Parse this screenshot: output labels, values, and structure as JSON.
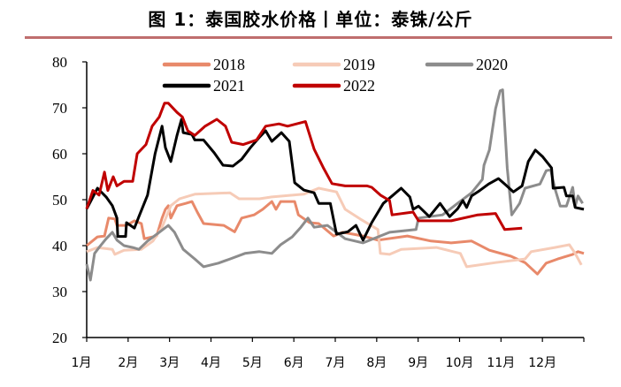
{
  "title": "图 1：泰国胶水价格丨单位：泰铢/公斤",
  "chart_data": {
    "type": "line",
    "title": "图 1：泰国胶水价格丨单位：泰铢/公斤",
    "xlabel": "",
    "ylabel": "",
    "xlim": [
      1,
      13
    ],
    "ylim": [
      20,
      80
    ],
    "yticks": [
      20,
      30,
      40,
      50,
      60,
      70,
      80
    ],
    "x_tick_labels": [
      "1月",
      "2月",
      "3月",
      "4月",
      "5月",
      "6月",
      "7月",
      "8月",
      "9月",
      "10月",
      "11月",
      "12月"
    ],
    "grid": false,
    "legend_placement": "top",
    "series": [
      {
        "name": "2018",
        "color": "#e8896a",
        "points": [
          [
            1,
            40
          ],
          [
            1.26,
            41.9
          ],
          [
            1.43,
            42.1
          ],
          [
            1.53,
            46
          ],
          [
            1.68,
            45.8
          ],
          [
            1.73,
            44.4
          ],
          [
            1.96,
            44.4
          ],
          [
            2.15,
            45.4
          ],
          [
            2.32,
            44.8
          ],
          [
            2.39,
            41.5
          ],
          [
            2.69,
            42.1
          ],
          [
            2.82,
            46
          ],
          [
            2.9,
            47.9
          ],
          [
            2.97,
            48.7
          ],
          [
            3.03,
            46
          ],
          [
            3.18,
            48.7
          ],
          [
            3.39,
            49.2
          ],
          [
            3.54,
            49.6
          ],
          [
            3.67,
            47.3
          ],
          [
            3.82,
            44.8
          ],
          [
            4.31,
            44.4
          ],
          [
            4.57,
            43
          ],
          [
            4.74,
            46
          ],
          [
            5.04,
            46.7
          ],
          [
            5.25,
            47.9
          ],
          [
            5.47,
            49.6
          ],
          [
            5.57,
            47.9
          ],
          [
            5.68,
            49.6
          ],
          [
            6.02,
            49.6
          ],
          [
            6.11,
            46.7
          ],
          [
            6.38,
            45
          ],
          [
            6.6,
            44.8
          ],
          [
            6.96,
            42.1
          ],
          [
            7.18,
            42.9
          ],
          [
            7.67,
            42.1
          ],
          [
            8.03,
            41.2
          ],
          [
            8.74,
            42.1
          ],
          [
            9.31,
            41
          ],
          [
            9.8,
            40.6
          ],
          [
            10.29,
            41
          ],
          [
            10.72,
            39
          ],
          [
            11.24,
            37.7
          ],
          [
            11.58,
            36.3
          ],
          [
            11.88,
            33.8
          ],
          [
            12.09,
            36.2
          ],
          [
            12.37,
            37.1
          ],
          [
            12.73,
            38.1
          ],
          [
            12.86,
            38.7
          ],
          [
            13,
            38.3
          ]
        ]
      },
      {
        "name": "2019",
        "color": "#f6cbb7",
        "points": [
          [
            1,
            38.7
          ],
          [
            1.26,
            39.6
          ],
          [
            1.62,
            39.2
          ],
          [
            1.68,
            38.1
          ],
          [
            1.9,
            39
          ],
          [
            2.32,
            39.2
          ],
          [
            2.6,
            41
          ],
          [
            2.82,
            44
          ],
          [
            3.03,
            48.7
          ],
          [
            3.24,
            50.2
          ],
          [
            3.61,
            51.2
          ],
          [
            4.46,
            51.5
          ],
          [
            4.68,
            50.2
          ],
          [
            5.17,
            50.2
          ],
          [
            5.47,
            50.6
          ],
          [
            6.24,
            51.2
          ],
          [
            6.6,
            52.5
          ],
          [
            7.03,
            51.7
          ],
          [
            7.24,
            47.9
          ],
          [
            7.6,
            45.8
          ],
          [
            8.03,
            43.5
          ],
          [
            8.09,
            38.3
          ],
          [
            8.31,
            38.1
          ],
          [
            8.59,
            39.2
          ],
          [
            9.44,
            39.6
          ],
          [
            10.02,
            38.3
          ],
          [
            10.17,
            35.4
          ],
          [
            10.87,
            36.3
          ],
          [
            11.58,
            37.1
          ],
          [
            11.73,
            38.7
          ],
          [
            12.3,
            39.6
          ],
          [
            12.65,
            40.2
          ],
          [
            12.79,
            38.3
          ],
          [
            12.94,
            35.8
          ]
        ]
      },
      {
        "name": "2020",
        "color": "#8c8c8c",
        "points": [
          [
            1,
            36
          ],
          [
            1.09,
            32.5
          ],
          [
            1.19,
            38.3
          ],
          [
            1.3,
            39.6
          ],
          [
            1.47,
            41.5
          ],
          [
            1.62,
            42.9
          ],
          [
            1.73,
            41.2
          ],
          [
            1.9,
            40
          ],
          [
            2.11,
            39.6
          ],
          [
            2.26,
            39.2
          ],
          [
            2.47,
            41
          ],
          [
            2.75,
            42.9
          ],
          [
            2.97,
            44.4
          ],
          [
            3.12,
            42.9
          ],
          [
            3.33,
            39.2
          ],
          [
            3.61,
            37.1
          ],
          [
            3.82,
            35.4
          ],
          [
            4.18,
            36.2
          ],
          [
            4.46,
            37.1
          ],
          [
            4.82,
            38.3
          ],
          [
            5.17,
            38.7
          ],
          [
            5.47,
            38.3
          ],
          [
            5.68,
            40.2
          ],
          [
            5.96,
            41.9
          ],
          [
            6.17,
            44
          ],
          [
            6.34,
            46
          ],
          [
            6.49,
            44
          ],
          [
            6.81,
            44.4
          ],
          [
            7.24,
            41.5
          ],
          [
            7.67,
            40.6
          ],
          [
            8.31,
            42.9
          ],
          [
            8.95,
            43.5
          ],
          [
            9.01,
            46
          ],
          [
            9.59,
            46.7
          ],
          [
            9.95,
            49.2
          ],
          [
            10.29,
            51.5
          ],
          [
            10.55,
            54.4
          ],
          [
            10.59,
            57.5
          ],
          [
            10.72,
            60.8
          ],
          [
            10.87,
            69.8
          ],
          [
            10.98,
            73.7
          ],
          [
            11.04,
            73.9
          ],
          [
            11.15,
            56.9
          ],
          [
            11.26,
            46.7
          ],
          [
            11.45,
            49.2
          ],
          [
            11.58,
            52.5
          ],
          [
            11.94,
            53.4
          ],
          [
            12.09,
            56.3
          ],
          [
            12.2,
            56.5
          ],
          [
            12.3,
            52.5
          ],
          [
            12.43,
            48.6
          ],
          [
            12.58,
            48.6
          ],
          [
            12.73,
            52.7
          ],
          [
            12.79,
            48.6
          ],
          [
            12.86,
            50.8
          ],
          [
            12.97,
            49.2
          ]
        ]
      },
      {
        "name": "2021",
        "color": "#000000",
        "points": [
          [
            1,
            48
          ],
          [
            1.26,
            52.5
          ],
          [
            1.47,
            50.6
          ],
          [
            1.62,
            48.7
          ],
          [
            1.73,
            46
          ],
          [
            1.75,
            42
          ],
          [
            1.94,
            42
          ],
          [
            1.96,
            45
          ],
          [
            2.15,
            43.8
          ],
          [
            2.26,
            46.3
          ],
          [
            2.47,
            51
          ],
          [
            2.65,
            60
          ],
          [
            2.82,
            66
          ],
          [
            2.9,
            61.3
          ],
          [
            3.03,
            58.3
          ],
          [
            3.18,
            64
          ],
          [
            3.29,
            67.5
          ],
          [
            3.33,
            64.6
          ],
          [
            3.54,
            64.2
          ],
          [
            3.61,
            63
          ],
          [
            3.82,
            63
          ],
          [
            4.08,
            60.2
          ],
          [
            4.29,
            57.5
          ],
          [
            4.53,
            57.3
          ],
          [
            4.74,
            58.8
          ],
          [
            4.95,
            61.3
          ],
          [
            5.17,
            63.6
          ],
          [
            5.32,
            65
          ],
          [
            5.47,
            62.7
          ],
          [
            5.7,
            64.6
          ],
          [
            5.89,
            62.7
          ],
          [
            6.02,
            53.7
          ],
          [
            6.24,
            52.1
          ],
          [
            6.49,
            51.5
          ],
          [
            6.6,
            49.2
          ],
          [
            6.88,
            49.2
          ],
          [
            7.03,
            42.5
          ],
          [
            7.3,
            43
          ],
          [
            7.5,
            44.4
          ],
          [
            7.67,
            41.2
          ],
          [
            7.88,
            45
          ],
          [
            8.16,
            49.2
          ],
          [
            8.37,
            50.8
          ],
          [
            8.59,
            52.5
          ],
          [
            8.8,
            50.6
          ],
          [
            8.88,
            47.9
          ],
          [
            9.01,
            48.6
          ],
          [
            9.27,
            46.3
          ],
          [
            9.53,
            49.2
          ],
          [
            9.76,
            46.3
          ],
          [
            9.95,
            48
          ],
          [
            10.08,
            49.8
          ],
          [
            10.17,
            48.3
          ],
          [
            10.29,
            50.8
          ],
          [
            10.49,
            52
          ],
          [
            10.7,
            53.4
          ],
          [
            10.94,
            54.6
          ],
          [
            11.09,
            53.4
          ],
          [
            11.3,
            51.7
          ],
          [
            11.51,
            53
          ],
          [
            11.66,
            58.3
          ],
          [
            11.83,
            60.8
          ],
          [
            12,
            59.4
          ],
          [
            12.22,
            56.9
          ],
          [
            12.26,
            52.5
          ],
          [
            12.52,
            52.7
          ],
          [
            12.58,
            50.8
          ],
          [
            12.73,
            50.8
          ],
          [
            12.79,
            48.3
          ],
          [
            13,
            47.9
          ]
        ]
      },
      {
        "name": "2022",
        "color": "#c00000",
        "points": [
          [
            1,
            48
          ],
          [
            1.15,
            52
          ],
          [
            1.3,
            51
          ],
          [
            1.43,
            56
          ],
          [
            1.51,
            52
          ],
          [
            1.64,
            55
          ],
          [
            1.73,
            53
          ],
          [
            1.9,
            54
          ],
          [
            2.11,
            54
          ],
          [
            2.22,
            60
          ],
          [
            2.43,
            62
          ],
          [
            2.58,
            66
          ],
          [
            2.75,
            68
          ],
          [
            2.88,
            71
          ],
          [
            2.97,
            71
          ],
          [
            3.18,
            69
          ],
          [
            3.31,
            68
          ],
          [
            3.44,
            65
          ],
          [
            3.61,
            64
          ],
          [
            3.86,
            66
          ],
          [
            4.14,
            67.5
          ],
          [
            4.35,
            66
          ],
          [
            4.5,
            62.5
          ],
          [
            4.78,
            62
          ],
          [
            5.1,
            63
          ],
          [
            5.32,
            66
          ],
          [
            5.64,
            66.5
          ],
          [
            5.85,
            66
          ],
          [
            6.28,
            67
          ],
          [
            6.49,
            61
          ],
          [
            6.71,
            57
          ],
          [
            6.92,
            53.5
          ],
          [
            7.24,
            53
          ],
          [
            7.77,
            53
          ],
          [
            7.88,
            52.7
          ],
          [
            8.09,
            51
          ],
          [
            8.31,
            49.8
          ],
          [
            8.37,
            46.7
          ],
          [
            8.88,
            47.3
          ],
          [
            9.01,
            45.4
          ],
          [
            9.8,
            45.4
          ],
          [
            10.44,
            46.7
          ],
          [
            10.87,
            47
          ],
          [
            11.09,
            43.5
          ],
          [
            11.51,
            43.8
          ]
        ]
      }
    ]
  }
}
